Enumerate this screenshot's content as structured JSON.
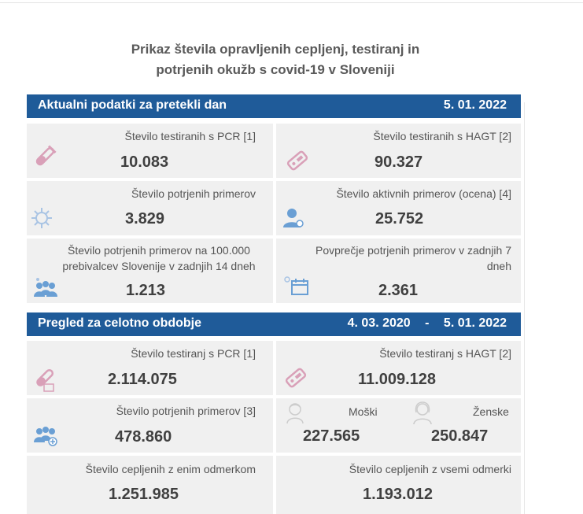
{
  "title_line1": "Prikaz števila opravljenih cepljenj, testiranj in",
  "title_line2": "potrjenih okužb s covid-19 v Sloveniji",
  "section1": {
    "heading": "Aktualni podatki za pretekli dan",
    "date": "5. 01. 2022",
    "pcr_label": "Število testiranih s PCR [1]",
    "pcr_value": "10.083",
    "hagt_label": "Število testiranih s HAGT [2]",
    "hagt_value": "90.327",
    "confirmed_label": "Število potrjenih primerov",
    "confirmed_value": "3.829",
    "active_label": "Število aktivnih primerov (ocena) [4]",
    "active_value": "25.752",
    "per100k_label_1": "Število potrjenih primerov na 100.000",
    "per100k_label_2": "prebivalcev Slovenije v zadnjih 14 dneh",
    "per100k_value": "1.213",
    "avg7_label_1": "Povprečje potrjenih primerov v zadnjih 7",
    "avg7_label_2": "dneh",
    "avg7_value": "2.361"
  },
  "section2": {
    "heading": "Pregled za celotno obdobje",
    "date_from": "4. 03. 2020",
    "date_sep": "-",
    "date_to": "5. 01. 2022",
    "pcr_label": "Število testiranj s PCR [1]",
    "pcr_value": "2.114.075",
    "hagt_label": "Število testiranj s HAGT [2]",
    "hagt_value": "11.009.128",
    "confirmed_label": "Število potrjenih primerov [3]",
    "confirmed_value": "478.860",
    "male_label": "Moški",
    "male_value": "227.565",
    "female_label": "Ženske",
    "female_value": "250.847",
    "vacc_one_label": "Število cepljenih z enim odmerkom",
    "vacc_one_value": "1.251.985",
    "vacc_all_label": "Število cepljenih z vsemi odmerki",
    "vacc_all_value": "1.193.012"
  },
  "colors": {
    "band": "#1f5b99",
    "card": "#f0f0f0",
    "icon_pink": "#d9a0b8",
    "icon_blue": "#6a9fd4"
  }
}
